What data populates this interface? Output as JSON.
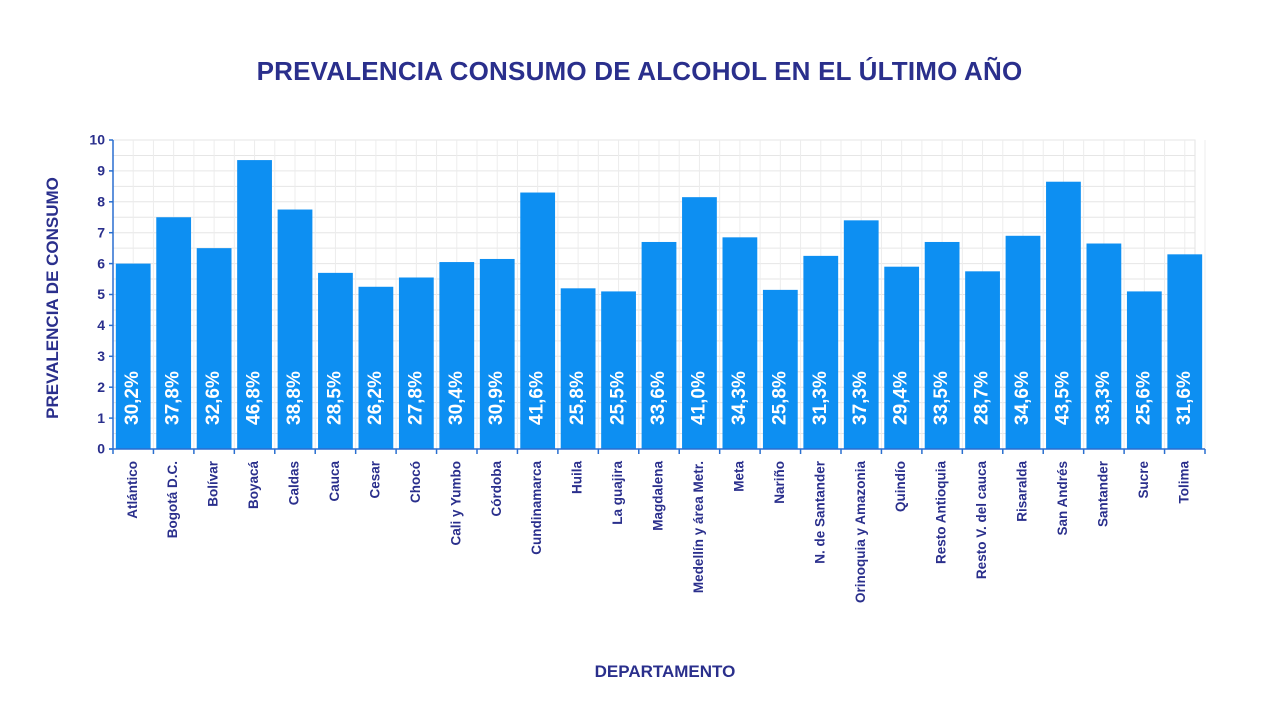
{
  "chart_data": {
    "type": "bar",
    "title": "PREVALENCIA CONSUMO DE ALCOHOL EN EL ÚLTIMO AÑO",
    "xlabel": "DEPARTAMENTO",
    "ylabel": "PREVALENCIA DE CONSUMO",
    "ylim": [
      0,
      10
    ],
    "yticks": [
      "0",
      "1",
      "2",
      "3",
      "4",
      "5",
      "6",
      "7",
      "8",
      "9",
      "10"
    ],
    "grid": true,
    "bar_color": "#0d8ff2",
    "text_color": "#2a2f8c",
    "categories": [
      "Atlántico",
      "Bogotá D.C.",
      "Bolívar",
      "Boyacá",
      "Caldas",
      "Cauca",
      "Cesar",
      "Chocó",
      "Cali y Yumbo",
      "Córdoba",
      "Cundinamarca",
      "Huila",
      "La guajira",
      "Magdalena",
      "Medellín y área Metr.",
      "Meta",
      "Nariño",
      "N. de Santander",
      "Orinoquia y Amazonia",
      "Quindío",
      "Resto Antioquia",
      "Resto V. del cauca",
      "Risaralda",
      "San Andrés",
      "Santander",
      "Sucre",
      "Tolima"
    ],
    "values": [
      6.0,
      7.5,
      6.5,
      9.35,
      7.75,
      5.7,
      5.25,
      5.55,
      6.05,
      6.15,
      8.3,
      5.2,
      5.1,
      6.7,
      8.15,
      6.85,
      5.15,
      6.25,
      7.4,
      5.9,
      6.7,
      5.75,
      6.9,
      8.65,
      6.65,
      5.1,
      6.3
    ],
    "data_labels": [
      "30,2%",
      "37,8%",
      "32,6%",
      "46,8%",
      "38,8%",
      "28,5%",
      "26,2%",
      "27,8%",
      "30,4%",
      "30,9%",
      "41,6%",
      "25,8%",
      "25,5%",
      "33,6%",
      "41,0%",
      "34,3%",
      "25,8%",
      "31,3%",
      "37,3%",
      "29,4%",
      "33,5%",
      "28,7%",
      "34,6%",
      "43,5%",
      "33,3%",
      "25,6%",
      "31,6%"
    ]
  }
}
